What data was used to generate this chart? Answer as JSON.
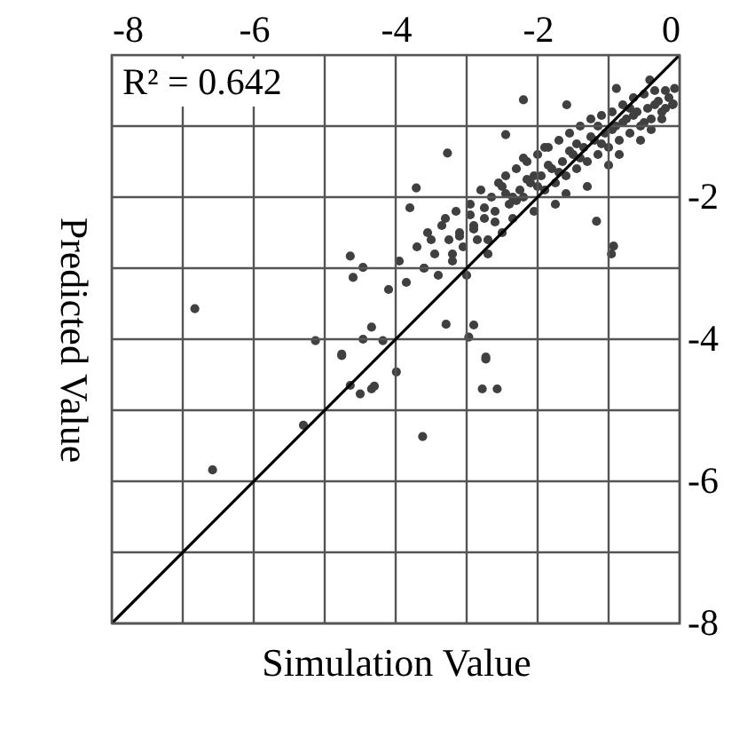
{
  "chart_data": {
    "type": "scatter",
    "xlabel": "Simulation Value",
    "ylabel": "Predicted Value",
    "annotations": [
      "R² = 0.642"
    ],
    "xlim": [
      -8,
      0
    ],
    "ylim": [
      -8,
      0
    ],
    "xticks": [
      -8,
      {
        "value": -7,
        "label": null
      },
      -6,
      {
        "value": -5,
        "label": null
      },
      -4,
      {
        "value": -3,
        "label": null
      },
      -2,
      {
        "value": -1,
        "label": null
      },
      0
    ],
    "yticks": [
      -8,
      {
        "value": -7,
        "label": null
      },
      -6,
      {
        "value": -5,
        "label": null
      },
      -4,
      {
        "value": -3,
        "label": null
      },
      -2,
      {
        "value": -1,
        "label": null
      }
    ],
    "grid": true,
    "series": [
      {
        "marker": "circle",
        "color": "#404040",
        "x": [
          -6.83,
          -2.2,
          -1.59,
          -2.45,
          -3.27,
          -3.71,
          -3.8,
          -4.64,
          -4.6,
          -4.46,
          -5.13,
          -4.76,
          -2.73,
          -0.96,
          -0.93,
          -1.17,
          -0.07,
          -0.09,
          -0.42,
          -0.89,
          -6.58,
          -5.3,
          -3.62,
          -2.78,
          -2.57,
          -2.73,
          -3.99,
          -4.64,
          -4.5,
          -4.34,
          -4.3,
          -4.76,
          -4.46,
          -4.18,
          -4.34,
          -3.29,
          -2.97,
          -2.9,
          -4.1,
          -3.95,
          -3.85,
          -3.7,
          -3.6,
          -3.55,
          -3.45,
          -3.4,
          -3.3,
          -3.25,
          -3.2,
          -3.15,
          -3.1,
          -3.05,
          -3.0,
          -2.95,
          -2.9,
          -2.85,
          -2.8,
          -2.75,
          -2.7,
          -2.65,
          -2.6,
          -2.55,
          -2.5,
          -2.45,
          -2.4,
          -2.35,
          -2.3,
          -2.25,
          -2.2,
          -2.15,
          -2.1,
          -2.05,
          -2.0,
          -1.95,
          -1.9,
          -1.85,
          -1.8,
          -1.75,
          -1.7,
          -1.65,
          -1.6,
          -1.55,
          -1.5,
          -1.45,
          -1.4,
          -1.35,
          -1.3,
          -1.25,
          -1.2,
          -1.15,
          -1.1,
          -1.05,
          -1.0,
          -0.95,
          -0.9,
          -0.85,
          -0.8,
          -0.75,
          -0.7,
          -0.65,
          -0.6,
          -0.55,
          -0.5,
          -0.45,
          -0.4,
          -0.35,
          -0.3,
          -0.25,
          -0.2,
          -0.15,
          -0.1,
          -3.5,
          -3.35,
          -3.1,
          -2.9,
          -2.75,
          -2.6,
          -2.45,
          -2.3,
          -2.15,
          -2.0,
          -1.85,
          -1.7,
          -1.55,
          -1.4,
          -1.25,
          -1.1,
          -0.95,
          -0.8,
          -0.65,
          -0.5,
          -0.35,
          -0.2,
          -3.6,
          -3.2,
          -2.95,
          -2.7,
          -2.5,
          -2.35,
          -2.2,
          -2.05,
          -1.9,
          -1.75,
          -1.6,
          -1.45,
          -1.3,
          -1.15,
          -1.0,
          -0.85,
          -0.7,
          -0.55,
          -0.4,
          -0.25
        ],
        "values": [
          -3.57,
          -0.63,
          -0.7,
          -1.12,
          -1.38,
          -1.87,
          -2.15,
          -2.83,
          -3.13,
          -2.99,
          -4.02,
          -4.23,
          -4.25,
          -2.8,
          -2.69,
          -2.34,
          -0.47,
          -0.69,
          -0.35,
          -0.47,
          -5.84,
          -5.21,
          -5.37,
          -4.7,
          -4.7,
          -4.28,
          -4.46,
          -4.65,
          -4.77,
          -4.7,
          -4.66,
          -4.21,
          -4.0,
          -4.02,
          -3.83,
          -3.79,
          -3.97,
          -3.8,
          -3.3,
          -2.9,
          -3.2,
          -2.7,
          -3.0,
          -2.5,
          -2.8,
          -3.1,
          -2.3,
          -2.6,
          -2.9,
          -2.2,
          -2.5,
          -2.7,
          -3.1,
          -2.1,
          -2.4,
          -2.6,
          -1.9,
          -2.3,
          -2.8,
          -2.0,
          -2.2,
          -1.8,
          -2.5,
          -1.7,
          -2.1,
          -2.3,
          -1.6,
          -1.9,
          -2.0,
          -1.5,
          -1.8,
          -2.2,
          -1.4,
          -1.7,
          -1.9,
          -1.3,
          -1.6,
          -1.8,
          -1.2,
          -1.5,
          -1.7,
          -1.1,
          -1.4,
          -1.6,
          -1.0,
          -1.3,
          -1.5,
          -0.9,
          -1.2,
          -1.4,
          -0.85,
          -1.1,
          -1.3,
          -0.8,
          -1.0,
          -1.2,
          -0.7,
          -0.9,
          -1.1,
          -0.6,
          -0.8,
          -1.0,
          -0.55,
          -0.75,
          -0.9,
          -0.5,
          -0.65,
          -0.8,
          -0.5,
          -0.6,
          -0.7,
          -2.6,
          -2.4,
          -2.55,
          -2.45,
          -2.15,
          -2.35,
          -1.95,
          -2.05,
          -1.75,
          -1.85,
          -1.55,
          -1.65,
          -1.35,
          -1.45,
          -1.15,
          -1.25,
          -1.05,
          -0.95,
          -0.85,
          -0.95,
          -0.7,
          -0.75,
          -3.0,
          -2.8,
          -2.25,
          -2.6,
          -1.85,
          -2.0,
          -1.45,
          -1.7,
          -1.3,
          -2.1,
          -1.95,
          -1.25,
          -1.85,
          -1.0,
          -1.55,
          -1.4,
          -0.75,
          -1.2,
          -1.05,
          -0.9
        ]
      },
      {
        "type": "line",
        "line_style": "solid",
        "color": "#000000",
        "x": [
          -8,
          0
        ],
        "values": [
          -8,
          0
        ]
      }
    ]
  }
}
